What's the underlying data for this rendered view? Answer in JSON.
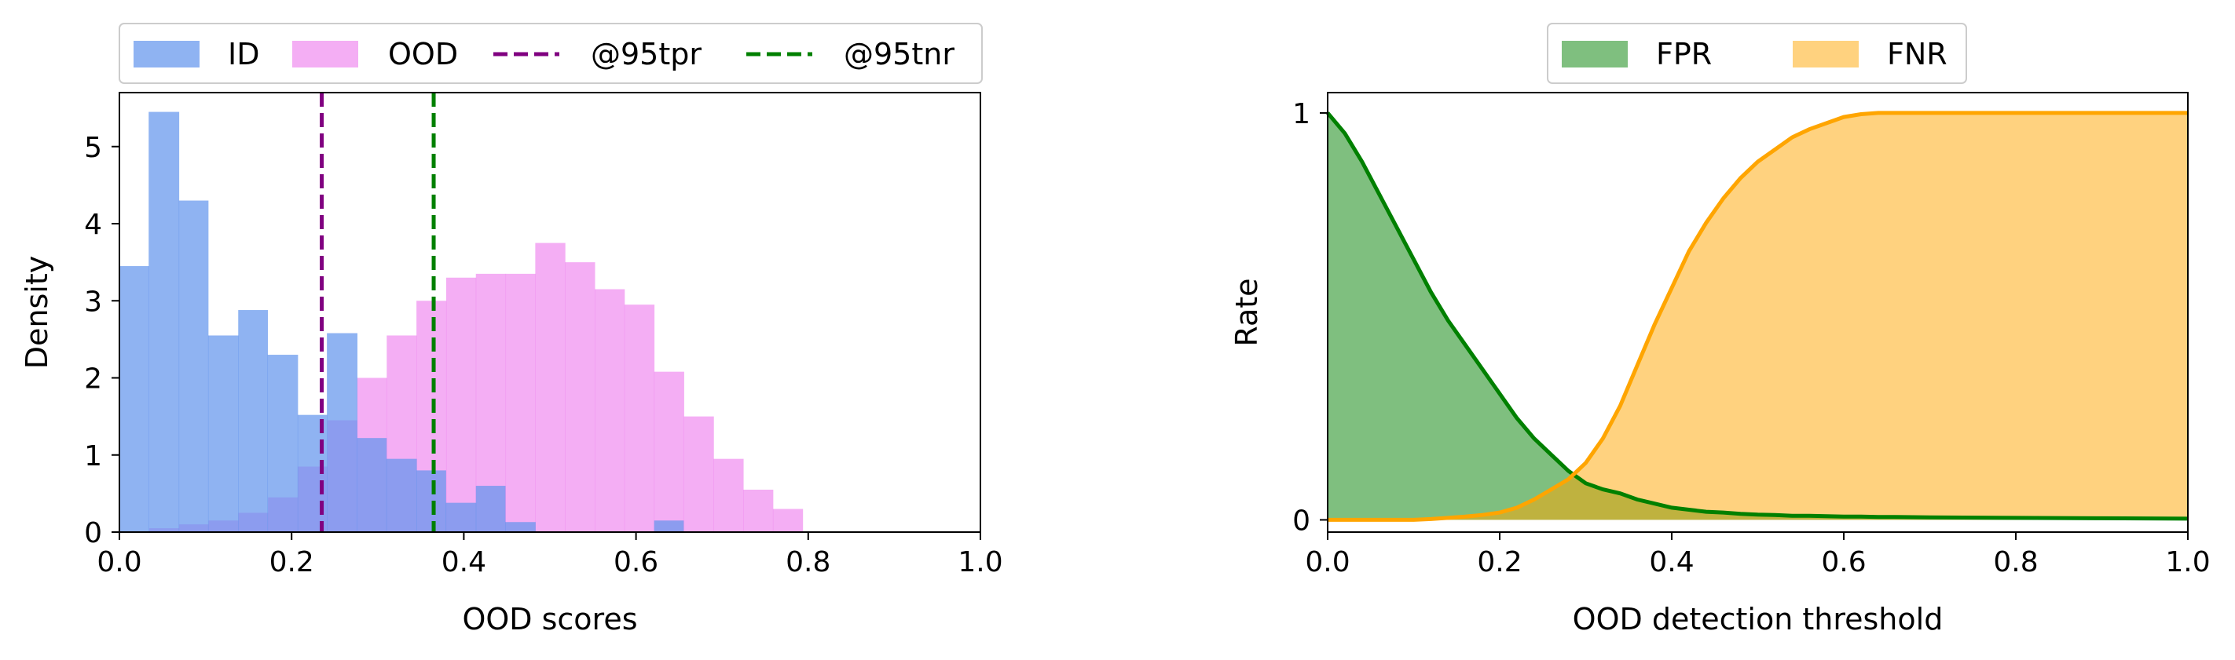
{
  "chart_data": [
    {
      "type": "histogram",
      "xlabel": "OOD scores",
      "ylabel": "Density",
      "xlim": [
        0.0,
        1.0
      ],
      "ylim": [
        0,
        5.7
      ],
      "xticks": [
        "0.0",
        "0.2",
        "0.4",
        "0.6",
        "0.8",
        "1.0"
      ],
      "yticks": [
        "0",
        "1",
        "2",
        "3",
        "4",
        "5"
      ],
      "legend": {
        "placement": "top-center",
        "entries": [
          {
            "label": "ID",
            "kind": "patch",
            "color": "#6495ED"
          },
          {
            "label": "OOD",
            "kind": "patch",
            "color": "#EE82EE"
          },
          {
            "label": "@95tpr",
            "kind": "dashed-line",
            "color": "#800080"
          },
          {
            "label": "@95tnr",
            "kind": "dashed-line",
            "color": "#008000"
          }
        ]
      },
      "bin_edges": [
        0.0,
        0.034,
        0.069,
        0.103,
        0.138,
        0.172,
        0.207,
        0.241,
        0.276,
        0.31,
        0.345,
        0.379,
        0.414,
        0.448,
        0.483,
        0.517,
        0.552,
        0.586,
        0.621,
        0.655,
        0.69
      ],
      "series": [
        {
          "name": "ID",
          "color": "#6495ED",
          "opacity": 0.72,
          "values": [
            3.45,
            5.45,
            4.3,
            2.55,
            2.88,
            2.3,
            1.52,
            2.58,
            1.22,
            0.95,
            0.8,
            0.38,
            0.6,
            0.13,
            0.0,
            0.0,
            0.0,
            0.0,
            0.15,
            0.0
          ]
        },
        {
          "name": "OOD",
          "color": "#EE82EE",
          "opacity": 0.65,
          "values": [
            0.0,
            0.05,
            0.1,
            0.15,
            0.25,
            0.45,
            0.85,
            1.45,
            2.0,
            2.55,
            3.0,
            3.3,
            3.35,
            3.35,
            3.75,
            3.5,
            3.15,
            2.95,
            2.08,
            1.5,
            0.95,
            0.55,
            0.3
          ]
        }
      ],
      "ood_bin_start": 0.0,
      "ood_bin_width": 0.0345,
      "vlines": [
        {
          "name": "@95tpr",
          "x": 0.235,
          "color": "#800080",
          "style": "dashed"
        },
        {
          "name": "@95tnr",
          "x": 0.365,
          "color": "#008000",
          "style": "dashed"
        }
      ],
      "grid": false
    },
    {
      "type": "area",
      "xlabel": "OOD detection threshold",
      "ylabel": "Rate",
      "xlim": [
        0.0,
        1.0
      ],
      "ylim": [
        -0.03,
        1.05
      ],
      "xticks": [
        "0.0",
        "0.2",
        "0.4",
        "0.6",
        "0.8",
        "1.0"
      ],
      "yticks": [
        "0",
        "1"
      ],
      "legend": {
        "placement": "top-center",
        "entries": [
          {
            "label": "FPR",
            "kind": "patch",
            "color": "#008000"
          },
          {
            "label": "FNR",
            "kind": "patch",
            "color": "#FFA500"
          }
        ]
      },
      "x": [
        0.0,
        0.02,
        0.04,
        0.06,
        0.08,
        0.1,
        0.12,
        0.14,
        0.16,
        0.18,
        0.2,
        0.22,
        0.24,
        0.26,
        0.28,
        0.3,
        0.32,
        0.34,
        0.36,
        0.38,
        0.4,
        0.42,
        0.44,
        0.46,
        0.48,
        0.5,
        0.52,
        0.54,
        0.56,
        0.58,
        0.6,
        0.62,
        0.64,
        0.66,
        0.7,
        0.8,
        0.9,
        1.0
      ],
      "series": [
        {
          "name": "FPR",
          "color": "#008000",
          "opacity": 0.5,
          "values": [
            1.0,
            0.95,
            0.88,
            0.8,
            0.72,
            0.64,
            0.56,
            0.49,
            0.43,
            0.37,
            0.31,
            0.25,
            0.2,
            0.16,
            0.12,
            0.09,
            0.075,
            0.065,
            0.05,
            0.04,
            0.03,
            0.025,
            0.02,
            0.018,
            0.015,
            0.013,
            0.012,
            0.01,
            0.01,
            0.009,
            0.008,
            0.008,
            0.007,
            0.007,
            0.006,
            0.005,
            0.004,
            0.003
          ]
        },
        {
          "name": "FNR",
          "color": "#FFA500",
          "opacity": 0.5,
          "values": [
            0.0,
            0.0,
            0.0,
            0.0,
            0.0,
            0.0,
            0.002,
            0.005,
            0.008,
            0.012,
            0.018,
            0.03,
            0.05,
            0.075,
            0.1,
            0.14,
            0.2,
            0.28,
            0.38,
            0.48,
            0.57,
            0.66,
            0.73,
            0.79,
            0.84,
            0.88,
            0.91,
            0.94,
            0.96,
            0.975,
            0.99,
            0.997,
            1.0,
            1.0,
            1.0,
            1.0,
            1.0,
            1.0
          ]
        }
      ],
      "grid": false
    }
  ]
}
